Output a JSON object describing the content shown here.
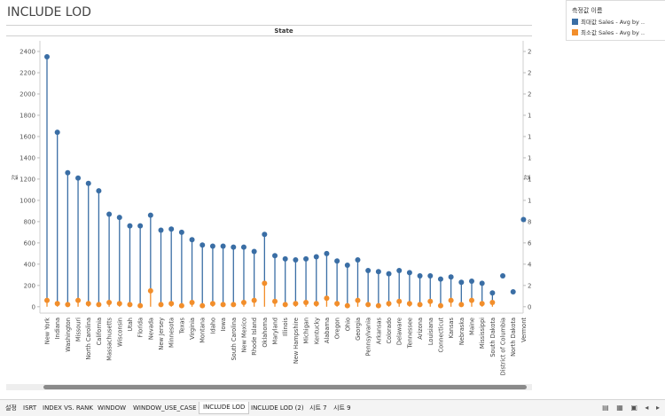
{
  "title": "INCLUDE LOD",
  "legend": {
    "title": "측정값 이름",
    "items": [
      {
        "label": "최대값 Sales - Avg by ..",
        "color": "#3a6ea5"
      },
      {
        "label": "최소값 Sales - Avg by ..",
        "color": "#f28e2b"
      }
    ]
  },
  "tabs": [
    {
      "label": "설정",
      "active": false
    },
    {
      "label": "ISRT",
      "active": false
    },
    {
      "label": "INDEX VS. RANK",
      "active": false
    },
    {
      "label": "WINDOW",
      "active": false
    },
    {
      "label": "WINDOW_USE_CASE",
      "active": false
    },
    {
      "label": "INCLUDE LOD",
      "active": true
    },
    {
      "label": "INCLUDE LOD (2)",
      "active": false
    },
    {
      "label": "시트 7",
      "active": false
    },
    {
      "label": "시트 9",
      "active": false
    }
  ],
  "chart_data": {
    "type": "scatter",
    "title": "State",
    "xlabel": "",
    "ylabel": "값",
    "ylabel_right": "값",
    "ylim": [
      -60,
      2500
    ],
    "yticks": [
      0,
      200,
      400,
      600,
      800,
      1000,
      1200,
      1400,
      1600,
      1800,
      2000,
      2200,
      2400
    ],
    "grid": false,
    "legend_position": "top-right",
    "categories": [
      "New York",
      "Indiana",
      "Washington",
      "Missouri",
      "North Carolina",
      "California",
      "Massachusetts",
      "Wisconsin",
      "Utah",
      "Florida",
      "Nevada",
      "New Jersey",
      "Minnesota",
      "Texas",
      "Virginia",
      "Montana",
      "Idaho",
      "Iowa",
      "South Carolina",
      "New Mexico",
      "Rhode Island",
      "Oklahoma",
      "Maryland",
      "Illinois",
      "New Hampshire",
      "Michigan",
      "Kentucky",
      "Alabama",
      "Oregon",
      "Ohio",
      "Georgia",
      "Pennsylvania",
      "Arkansas",
      "Colorado",
      "Delaware",
      "Tennessee",
      "Arizona",
      "Louisiana",
      "Connecticut",
      "Kansas",
      "Nebraska",
      "Maine",
      "Mississippi",
      "South Dakota",
      "District of Columbia",
      "North Dakota",
      "Vermont"
    ],
    "series": [
      {
        "name": "최대값 Sales - Avg by ..",
        "color": "#3a6ea5",
        "values": [
          2350,
          1640,
          1260,
          1210,
          1160,
          1090,
          870,
          840,
          760,
          760,
          860,
          720,
          730,
          700,
          630,
          580,
          570,
          570,
          560,
          560,
          520,
          680,
          480,
          450,
          440,
          450,
          470,
          500,
          430,
          390,
          440,
          340,
          330,
          310,
          340,
          320,
          290,
          290,
          260,
          280,
          230,
          240,
          220,
          130,
          290,
          140,
          820
        ]
      },
      {
        "name": "최소값 Sales - Avg by ..",
        "color": "#f28e2b",
        "values": [
          60,
          30,
          20,
          60,
          30,
          20,
          40,
          30,
          20,
          10,
          150,
          20,
          30,
          10,
          40,
          10,
          30,
          20,
          20,
          40,
          60,
          220,
          50,
          20,
          30,
          40,
          30,
          80,
          30,
          10,
          60,
          20,
          10,
          30,
          50,
          30,
          20,
          50,
          10,
          60,
          20,
          60,
          30,
          40,
          null,
          null,
          null
        ]
      }
    ]
  }
}
